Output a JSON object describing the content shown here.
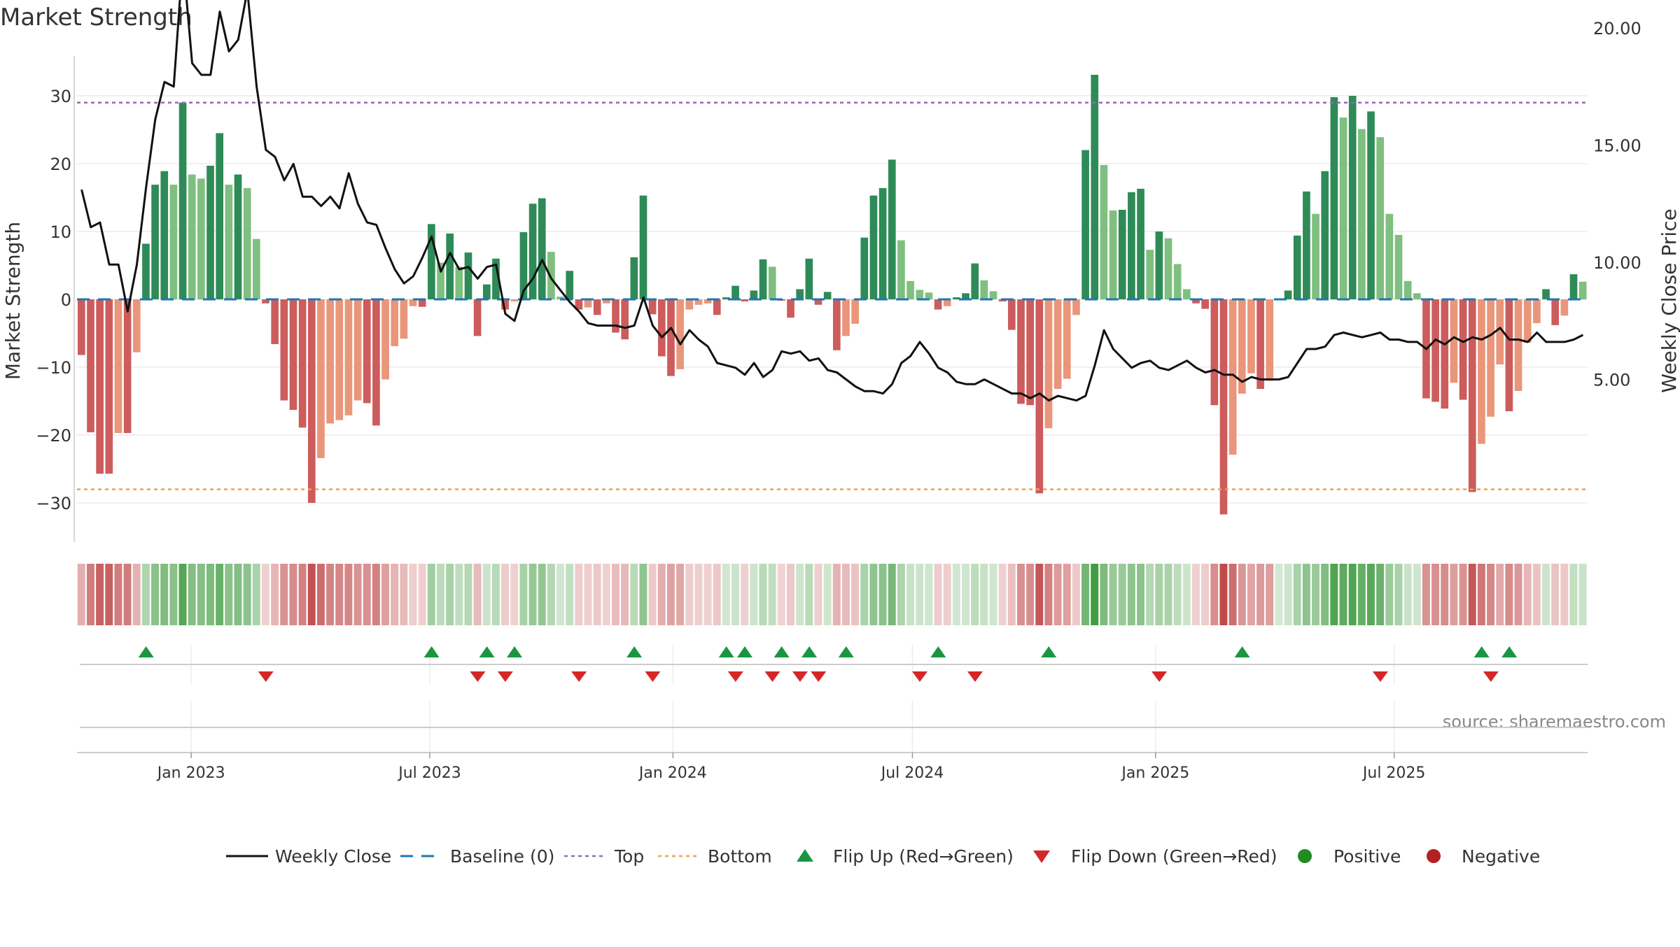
{
  "chart_data": {
    "type": "bar",
    "title": "Market Strength",
    "ylabel": "Market Strength",
    "y2label": "Weekly Close Price",
    "source": "source: sharemaestro.com",
    "ylim": [
      -36,
      36
    ],
    "y2lim": [
      2.5,
      24.5
    ],
    "yticks": [
      30,
      20,
      10,
      0,
      -10,
      -20,
      -30
    ],
    "ytick_labels": [
      "30",
      "20",
      "10",
      "0",
      "−10",
      "−20",
      "−30"
    ],
    "y2ticks": [
      20,
      15,
      10,
      5
    ],
    "y2tick_labels": [
      "20.00",
      "15.00",
      "10.00",
      "5.00"
    ],
    "xticks": [
      {
        "index": 12.4,
        "label": "Jan 2023"
      },
      {
        "index": 38.3,
        "label": "Jul 2023"
      },
      {
        "index": 64.7,
        "label": "Jan 2024"
      },
      {
        "index": 90.7,
        "label": "Jul 2024"
      },
      {
        "index": 117.1,
        "label": "Jan 2025"
      },
      {
        "index": 143.0,
        "label": "Jul 2025"
      }
    ],
    "top_level": 29,
    "bottom_level": -28,
    "strength": [
      -8.2,
      -19.6,
      -25.7,
      -25.7,
      -19.7,
      -19.7,
      -7.8,
      8.2,
      16.9,
      18.9,
      16.9,
      29,
      18.4,
      17.8,
      19.7,
      24.5,
      16.9,
      18.4,
      16.4,
      8.9,
      -0.6,
      -6.6,
      -14.9,
      -16.3,
      -18.9,
      -30,
      -23.4,
      -18.3,
      -17.8,
      -17.1,
      -14.9,
      -15.3,
      -18.6,
      -11.8,
      -6.9,
      -5.8,
      -1,
      -1.1,
      11.1,
      5.4,
      9.7,
      4.8,
      6.9,
      -5.4,
      2.2,
      6,
      -1.5,
      -0.3,
      9.9,
      14.1,
      14.9,
      7,
      0.4,
      4.2,
      -1.5,
      -1.2,
      -2.3,
      -0.6,
      -4.9,
      -5.9,
      6.2,
      15.3,
      -2.2,
      -8.4,
      -11.3,
      -10.3,
      -1.5,
      -0.8,
      -0.6,
      -2.3,
      0.3,
      2,
      -0.3,
      1.3,
      5.9,
      4.8,
      -0.2,
      -2.7,
      1.5,
      6,
      -0.8,
      1.1,
      -7.5,
      -5.4,
      -3.6,
      9.1,
      15.3,
      16.4,
      20.6,
      8.7,
      2.7,
      1.4,
      1,
      -1.5,
      -1,
      0.3,
      0.9,
      5.3,
      2.8,
      1.2,
      -0.3,
      -4.5,
      -15.4,
      -15.6,
      -28.6,
      -19,
      -13.2,
      -11.7,
      -2.3,
      22,
      33.1,
      19.8,
      13.1,
      13.2,
      15.8,
      16.3,
      7.3,
      10,
      9,
      5.2,
      1.5,
      -0.6,
      -1.4,
      -15.6,
      -31.7,
      -22.9,
      -13.9,
      -10.9,
      -13.2,
      -12,
      0,
      1.3,
      9.4,
      15.9,
      12.6,
      18.9,
      29.8,
      26.8,
      30,
      25.1,
      27.7,
      23.9,
      12.6,
      9.5,
      2.7,
      0.9,
      -14.6,
      -15.1,
      -16.1,
      -12.3,
      -14.8,
      -28.4,
      -21.3,
      -17.3,
      -9.6,
      -16.5,
      -13.5,
      -6.4,
      -3.5,
      1.5,
      -3.8,
      -2.4,
      3.7,
      2.6
    ],
    "close": [
      13.1,
      11.5,
      11.7,
      9.9,
      9.9,
      7.9,
      9.9,
      13.2,
      16.1,
      17.7,
      17.5,
      23,
      18.5,
      18,
      18,
      20.7,
      19,
      19.5,
      21.6,
      17.5,
      14.8,
      14.5,
      13.5,
      14.2,
      12.8,
      12.8,
      12.4,
      12.8,
      12.3,
      13.8,
      12.5,
      11.7,
      11.6,
      10.6,
      9.7,
      9.1,
      9.4,
      10.2,
      11.1,
      9.6,
      10.4,
      9.7,
      9.8,
      9.3,
      9.8,
      9.9,
      7.8,
      7.5,
      8.8,
      9.3,
      10.1,
      9.3,
      8.8,
      8.3,
      7.9,
      7.4,
      7.3,
      7.3,
      7.3,
      7.2,
      7.3,
      8.5,
      7.3,
      6.8,
      7.2,
      6.5,
      7.1,
      6.7,
      6.4,
      5.7,
      5.6,
      5.5,
      5.2,
      5.7,
      5.1,
      5.4,
      6.2,
      6.1,
      6.2,
      5.8,
      5.9,
      5.4,
      5.3,
      5,
      4.7,
      4.5,
      4.5,
      4.4,
      4.8,
      5.7,
      6.0,
      6.6,
      6.1,
      5.5,
      5.3,
      4.9,
      4.8,
      4.8,
      5.0,
      4.8,
      4.6,
      4.4,
      4.4,
      4.2,
      4.4,
      4.1,
      4.3,
      4.2,
      4.1,
      4.3,
      5.6,
      7.1,
      6.3,
      5.9,
      5.5,
      5.7,
      5.8,
      5.5,
      5.4,
      5.6,
      5.8,
      5.5,
      5.3,
      5.4,
      5.2,
      5.2,
      4.9,
      5.1,
      5.0,
      5.0,
      5.0,
      5.1,
      5.7,
      6.3,
      6.3,
      6.4,
      6.9,
      7.0,
      6.9,
      6.8,
      6.9,
      7.0,
      6.7,
      6.7,
      6.6,
      6.6,
      6.3,
      6.7,
      6.5,
      6.8,
      6.6,
      6.8,
      6.7,
      6.9,
      7.2,
      6.7,
      6.7,
      6.6,
      7.0,
      6.6,
      6.6,
      6.6,
      6.7,
      6.9
    ],
    "flip_up": [
      7,
      38,
      44,
      47,
      60,
      70,
      72,
      76,
      79,
      83,
      93,
      105,
      126,
      152,
      155
    ],
    "flip_down": [
      20,
      43,
      46,
      54,
      62,
      71,
      75,
      78,
      80,
      91,
      97,
      117,
      141,
      153
    ],
    "legend": [
      {
        "key": "Weekly Close",
        "label": "Weekly Close"
      },
      {
        "key": "Baseline",
        "label": "Baseline (0)"
      },
      {
        "key": "Top",
        "label": "Top"
      },
      {
        "key": "Bottom",
        "label": "Bottom"
      },
      {
        "key": "Flip Up",
        "label": "Flip Up (Red→Green)"
      },
      {
        "key": "Flip Down",
        "label": "Flip Down (Green→Red)"
      },
      {
        "key": "Positive",
        "label": "Positive"
      },
      {
        "key": "Negative",
        "label": "Negative"
      }
    ],
    "grid": true,
    "legend_position": "bottom-center"
  },
  "colors": {
    "green_strong": "#2e8b57",
    "green_light": "#7fbf7f",
    "red_strong": "#cd5c5c",
    "red_light": "#e9967a",
    "close_line": "#111111",
    "baseline": "#1f77b4",
    "top": "#9467bd",
    "bottom": "#f0a050",
    "flip_up": "#1a9641",
    "flip_down": "#d62728",
    "positive": "#228b22",
    "negative": "#b22222",
    "text": "#333333",
    "grid": "#ececec",
    "axis": "#cccccc",
    "source": "#888888"
  }
}
